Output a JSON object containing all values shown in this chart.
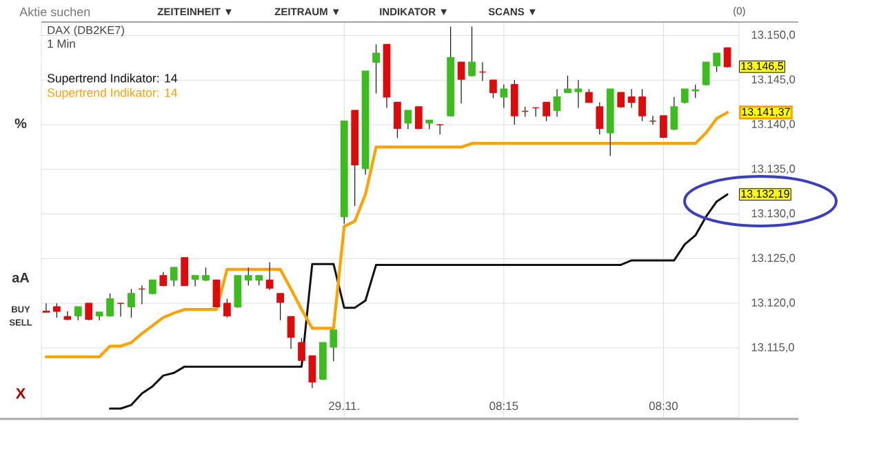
{
  "chart_data": {
    "type": "candlestick",
    "title": "DAX (DB2KE7)",
    "subtitle": "1 Min",
    "categories": [
      null,
      null,
      null,
      null,
      null,
      null,
      null,
      null,
      null,
      null,
      null,
      null,
      null,
      null,
      null,
      null,
      null,
      null,
      null,
      null,
      null,
      null,
      null,
      null,
      null,
      null,
      null,
      null,
      "29.11.",
      null,
      null,
      null,
      null,
      null,
      null,
      null,
      null,
      null,
      null,
      null,
      null,
      null,
      null,
      "08:15",
      null,
      null,
      null,
      null,
      null,
      null,
      null,
      null,
      null,
      null,
      null,
      null,
      null,
      null,
      "08:30",
      null,
      null,
      null,
      null,
      null,
      null
    ],
    "series": [
      {
        "ohlc": [
          [
            13119.1,
            13120.0,
            13119.0,
            13119.0
          ],
          [
            13119.6,
            13120.0,
            13118.4,
            13119.1
          ],
          [
            13118.5,
            13119.1,
            13118.1,
            13118.2
          ],
          [
            13118.6,
            13119.6,
            13118.1,
            13119.6
          ],
          [
            13120.0,
            13120.0,
            13118.1,
            13118.2
          ],
          [
            13118.6,
            13119.0,
            13118.1,
            13119.0
          ],
          [
            13118.6,
            13121.1,
            13118.5,
            13120.5
          ],
          [
            13120.0,
            13120.0,
            13118.5,
            13120.0
          ],
          [
            13119.6,
            13121.6,
            13118.4,
            13121.1
          ],
          [
            13121.6,
            13122.0,
            13119.9,
            13121.6
          ],
          [
            13121.1,
            13122.6,
            13121.0,
            13122.6
          ],
          [
            13123.1,
            13123.5,
            13121.9,
            13122.0
          ],
          [
            13122.6,
            13124.0,
            13121.9,
            13124.0
          ],
          [
            13125.1,
            13125.1,
            13122.0,
            13122.0
          ],
          [
            13122.7,
            13123.1,
            13121.9,
            13123.1
          ],
          [
            13122.6,
            13124.0,
            13122.5,
            13123.1
          ],
          [
            13122.6,
            13122.6,
            13119.6,
            13119.6
          ],
          [
            13120.0,
            13120.5,
            13118.4,
            13118.6
          ],
          [
            13119.6,
            13123.1,
            13119.5,
            13123.1
          ],
          [
            13122.6,
            13124.0,
            13122.0,
            13123.1
          ],
          [
            13122.6,
            13123.1,
            13122.0,
            13123.1
          ],
          [
            13122.6,
            13124.6,
            13121.5,
            13121.7
          ],
          [
            13121.1,
            13121.1,
            13118.1,
            13120.1
          ],
          [
            13118.5,
            13118.5,
            13114.9,
            13116.2
          ],
          [
            13115.6,
            13116.1,
            13113.6,
            13113.6
          ],
          [
            13114.1,
            13114.1,
            13110.5,
            13111.2
          ],
          [
            13111.5,
            13115.6,
            13111.4,
            13115.6
          ],
          [
            13115.1,
            13117.0,
            13113.5,
            13117.0
          ],
          [
            13129.7,
            13140.4,
            13128.9,
            13140.4
          ],
          [
            13141.6,
            13141.6,
            13130.9,
            13135.5
          ],
          [
            13135.1,
            13146.0,
            13134.4,
            13146.0
          ],
          [
            13147.0,
            13149.0,
            13143.5,
            13148.0
          ],
          [
            13149.0,
            13149.0,
            13141.9,
            13143.1
          ],
          [
            13142.5,
            13142.5,
            13138.5,
            13139.6
          ],
          [
            13140.2,
            13141.6,
            13139.5,
            13141.6
          ],
          [
            13142.0,
            13142.0,
            13139.5,
            13139.6
          ],
          [
            13140.2,
            13140.5,
            13139.5,
            13140.5
          ],
          [
            13140.0,
            13140.0,
            13138.9,
            13140.0
          ],
          [
            13141.0,
            13151.0,
            13140.9,
            13147.5
          ],
          [
            13147.0,
            13147.0,
            13142.4,
            13145.1
          ],
          [
            13145.5,
            13151.0,
            13145.4,
            13147.0
          ],
          [
            13145.9,
            13147.0,
            13144.9,
            13145.9
          ],
          [
            13145.0,
            13145.0,
            13143.0,
            13143.6
          ],
          [
            13143.1,
            13144.5,
            13141.9,
            13144.0
          ],
          [
            13144.5,
            13145.0,
            13140.0,
            13141.0
          ],
          [
            13141.5,
            13142.0,
            13140.9,
            13141.5
          ],
          [
            13141.9,
            13141.9,
            13140.9,
            13141.9
          ],
          [
            13142.5,
            13142.5,
            13140.4,
            13141.0
          ],
          [
            13141.6,
            13144.0,
            13140.9,
            13143.1
          ],
          [
            13143.6,
            13145.5,
            13143.6,
            13144.0
          ],
          [
            13143.7,
            13145.0,
            13141.9,
            13144.0
          ],
          [
            13143.6,
            13144.0,
            13142.5,
            13142.5
          ],
          [
            13142.0,
            13142.5,
            13138.9,
            13139.6
          ],
          [
            13139.1,
            13144.0,
            13136.5,
            13144.0
          ],
          [
            13143.6,
            13143.6,
            13141.9,
            13142.0
          ],
          [
            13143.1,
            13144.0,
            13141.9,
            13142.5
          ],
          [
            13143.1,
            13144.0,
            13140.4,
            13141.0
          ],
          [
            13140.4,
            13141.0,
            13140.0,
            13140.4
          ],
          [
            13141.0,
            13141.0,
            13138.5,
            13138.6
          ],
          [
            13139.5,
            13143.1,
            13139.4,
            13142.0
          ],
          [
            13142.5,
            13144.0,
            13142.4,
            13144.0
          ],
          [
            13143.8,
            13144.5,
            13143.0,
            13143.9
          ],
          [
            13144.5,
            13147.0,
            13144.4,
            13147.0
          ],
          [
            13146.6,
            13148.0,
            13145.9,
            13148.0
          ],
          [
            13148.6,
            13148.6,
            13146.4,
            13146.5
          ]
        ],
        "colors": [
          "#dd0c0c",
          "#dd0c0c",
          "#dd0c0c",
          "#3cbc1e",
          "#dd0c0c",
          "#3cbc1e",
          "#3cbc1e",
          "#dd0c0c",
          "#3cbc1e",
          "#dd0c0c",
          "#3cbc1e",
          "#dd0c0c",
          "#3cbc1e",
          "#dd0c0c",
          "#3cbc1e",
          "#3cbc1e",
          "#dd0c0c",
          "#dd0c0c",
          "#3cbc1e",
          "#3cbc1e",
          "#3cbc1e",
          "#dd0c0c",
          "#dd0c0c",
          "#dd0c0c",
          "#dd0c0c",
          "#dd0c0c",
          "#3cbc1e",
          "#3cbc1e",
          "#3cbc1e",
          "#dd0c0c",
          "#3cbc1e",
          "#3cbc1e",
          "#dd0c0c",
          "#dd0c0c",
          "#3cbc1e",
          "#dd0c0c",
          "#3cbc1e",
          "#dd0c0c",
          "#3cbc1e",
          "#dd0c0c",
          "#3cbc1e",
          "#dd0c0c",
          "#dd0c0c",
          "#3cbc1e",
          "#dd0c0c",
          "#dd0c0c",
          "#dd0c0c",
          "#dd0c0c",
          "#3cbc1e",
          "#3cbc1e",
          "#3cbc1e",
          "#dd0c0c",
          "#dd0c0c",
          "#3cbc1e",
          "#dd0c0c",
          "#dd0c0c",
          "#dd0c0c",
          "#dd0c0c",
          "#dd0c0c",
          "#3cbc1e",
          "#3cbc1e",
          "#3cbc1e",
          "#3cbc1e",
          "#3cbc1e",
          "#dd0c0c"
        ],
        "value_labels": [
          null,
          null,
          null,
          null,
          null,
          null,
          null,
          null,
          null,
          null,
          null,
          null,
          null,
          null,
          null,
          null,
          null,
          null,
          null,
          null,
          null,
          null,
          null,
          null,
          null,
          null,
          null,
          null,
          null,
          null,
          null,
          null,
          null,
          null,
          null,
          null,
          null,
          null,
          null,
          null,
          null,
          null,
          null,
          null,
          null,
          null,
          null,
          null,
          null,
          null,
          null,
          null,
          null,
          null,
          null,
          null,
          null,
          null,
          null,
          null,
          null,
          null,
          null,
          null,
          "13.146,5"
        ]
      },
      {
        "type": "line",
        "name": "Supertrend Indikator: 14",
        "color": "#111111",
        "values": [
          null,
          null,
          null,
          null,
          null,
          null,
          13108.2,
          13108.2,
          13108.6,
          13109.9,
          13110.7,
          13111.9,
          13112.2,
          13112.9,
          13112.9,
          13112.9,
          13112.9,
          13112.9,
          13112.9,
          13112.9,
          13112.9,
          13112.9,
          13112.9,
          13112.9,
          13112.9,
          13124.4,
          13124.4,
          13124.4,
          13119.5,
          13119.5,
          13120.3,
          13124.3,
          13124.3,
          13124.3,
          13124.3,
          13124.3,
          13124.3,
          13124.3,
          13124.3,
          13124.3,
          13124.3,
          13124.3,
          13124.3,
          13124.3,
          13124.3,
          13124.3,
          13124.3,
          13124.3,
          13124.3,
          13124.3,
          13124.3,
          13124.3,
          13124.3,
          13124.3,
          13124.3,
          13124.8,
          13124.8,
          13124.8,
          13124.8,
          13124.8,
          13126.6,
          13127.6,
          13129.7,
          13131.4,
          13132.19
        ],
        "value_labels": [
          null,
          null,
          null,
          null,
          null,
          null,
          null,
          null,
          null,
          null,
          null,
          null,
          null,
          null,
          null,
          null,
          null,
          null,
          null,
          null,
          null,
          null,
          null,
          null,
          null,
          null,
          null,
          null,
          null,
          null,
          null,
          null,
          null,
          null,
          null,
          null,
          null,
          null,
          null,
          null,
          null,
          null,
          null,
          null,
          null,
          null,
          null,
          null,
          null,
          null,
          null,
          null,
          null,
          null,
          null,
          null,
          null,
          null,
          null,
          null,
          null,
          null,
          null,
          null,
          "13.132,19"
        ]
      },
      {
        "type": "line",
        "name": "Supertrend Indikator: 14",
        "color": "#ffa200",
        "values": [
          13114.0,
          13114.0,
          13114.0,
          13114.0,
          13114.0,
          13114.0,
          13115.2,
          13115.2,
          13115.6,
          13116.6,
          13117.5,
          13118.4,
          13118.9,
          13119.3,
          13119.3,
          13119.3,
          13119.3,
          13123.8,
          13123.8,
          13123.8,
          13123.8,
          13123.8,
          13123.8,
          13121.6,
          13119.3,
          13117.2,
          13117.2,
          13117.2,
          13128.6,
          13129.2,
          13132.2,
          13137.5,
          13137.5,
          13137.5,
          13137.5,
          13137.5,
          13137.5,
          13137.5,
          13137.5,
          13137.5,
          13137.9,
          13137.9,
          13137.9,
          13137.9,
          13137.9,
          13137.9,
          13137.9,
          13137.9,
          13137.9,
          13137.9,
          13137.9,
          13137.9,
          13137.9,
          13137.9,
          13137.9,
          13137.9,
          13137.9,
          13137.9,
          13137.9,
          13137.9,
          13137.9,
          13137.9,
          13139.1,
          13140.7,
          13141.37
        ],
        "value_labels": [
          null,
          null,
          null,
          null,
          null,
          null,
          null,
          null,
          null,
          null,
          null,
          null,
          null,
          null,
          null,
          null,
          null,
          null,
          null,
          null,
          null,
          null,
          null,
          null,
          null,
          null,
          null,
          null,
          null,
          null,
          null,
          null,
          null,
          null,
          null,
          null,
          null,
          null,
          null,
          null,
          null,
          null,
          null,
          null,
          null,
          null,
          null,
          null,
          null,
          null,
          null,
          null,
          null,
          null,
          null,
          null,
          null,
          null,
          null,
          null,
          null,
          null,
          null,
          null,
          "13.141,37"
        ]
      }
    ],
    "ylim": [
      13107.2,
      13151.5
    ],
    "yticks": [
      {
        "value": 13115,
        "label": "13.115,0"
      },
      {
        "value": 13120,
        "label": "13.120,0"
      },
      {
        "value": 13125,
        "label": "13.125,0"
      },
      {
        "value": 13130,
        "label": "13.130,0"
      },
      {
        "value": 13135,
        "label": "13.135,0"
      },
      {
        "value": 13140,
        "label": "13.140,0"
      },
      {
        "value": 13145,
        "label": "13.145,0"
      },
      {
        "value": 13150,
        "label": "13.150,0"
      }
    ],
    "grid": true,
    "legend": "top left",
    "annotations": [
      "Aktie suchen",
      "ZEITEINHEIT ▼",
      "ZEITRAUM ▼",
      "INDIKATOR ▼",
      "SCANS ▼",
      "(0)",
      "%",
      "aA",
      "BUY",
      "SELL",
      "X"
    ]
  }
}
